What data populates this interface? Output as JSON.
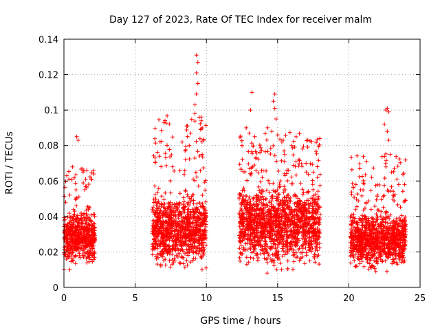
{
  "chart_data": {
    "type": "scatter",
    "title": "Day 127 of 2023, Rate Of TEC Index for receiver malm",
    "xlabel": "GPS time / hours",
    "ylabel": "ROTI / TECUs",
    "xlim": [
      0,
      25
    ],
    "ylim": [
      0,
      0.14
    ],
    "xticks": [
      0,
      5,
      10,
      15,
      20,
      25
    ],
    "yticks": [
      0,
      0.02,
      0.04,
      0.06,
      0.08,
      0.1,
      0.12,
      0.14
    ],
    "xtick_labels": [
      "0",
      "5",
      "10",
      "15",
      "20",
      "25"
    ],
    "ytick_labels": [
      "0",
      "0.02",
      "0.04",
      "0.06",
      "0.08",
      "0.1",
      "0.12",
      "0.14"
    ],
    "grid": true,
    "legend": "none",
    "marker": "plus",
    "color": "#ff0000",
    "segments": [
      {
        "x_start": 0.0,
        "x_end": 2.2,
        "typical": [
          0.008,
          0.045
        ],
        "max": 0.085
      },
      {
        "x_start": 6.2,
        "x_end": 10.0,
        "typical": [
          0.006,
          0.055
        ],
        "max": 0.131
      },
      {
        "x_start": 12.3,
        "x_end": 18.0,
        "typical": [
          0.006,
          0.06
        ],
        "max": 0.11
      },
      {
        "x_start": 20.1,
        "x_end": 24.0,
        "typical": [
          0.006,
          0.045
        ],
        "max": 0.101
      }
    ],
    "points": [
      [
        0.9,
        0.085
      ],
      [
        1.0,
        0.083
      ],
      [
        0.2,
        0.063
      ],
      [
        0.6,
        0.068
      ],
      [
        1.4,
        0.066
      ],
      [
        1.6,
        0.066
      ],
      [
        2.1,
        0.064
      ],
      [
        6.4,
        0.073
      ],
      [
        6.7,
        0.074
      ],
      [
        8.5,
        0.077
      ],
      [
        8.8,
        0.08
      ],
      [
        9.2,
        0.098
      ],
      [
        9.2,
        0.103
      ],
      [
        9.3,
        0.131
      ],
      [
        9.4,
        0.127
      ],
      [
        9.3,
        0.121
      ],
      [
        9.4,
        0.115
      ],
      [
        9.3,
        0.109
      ],
      [
        9.5,
        0.096
      ],
      [
        9.6,
        0.089
      ],
      [
        9.8,
        0.083
      ],
      [
        9.7,
        0.075
      ],
      [
        8.9,
        0.087
      ],
      [
        8.3,
        0.082
      ],
      [
        12.5,
        0.08
      ],
      [
        12.8,
        0.09
      ],
      [
        13.0,
        0.087
      ],
      [
        13.2,
        0.11
      ],
      [
        13.1,
        0.1
      ],
      [
        13.4,
        0.085
      ],
      [
        14.3,
        0.09
      ],
      [
        14.7,
        0.105
      ],
      [
        14.8,
        0.109
      ],
      [
        14.8,
        0.101
      ],
      [
        14.9,
        0.095
      ],
      [
        14.6,
        0.088
      ],
      [
        15.0,
        0.086
      ],
      [
        15.3,
        0.082
      ],
      [
        16.0,
        0.08
      ],
      [
        16.5,
        0.072
      ],
      [
        17.0,
        0.07
      ],
      [
        17.5,
        0.065
      ],
      [
        17.8,
        0.062
      ],
      [
        20.5,
        0.058
      ],
      [
        21.0,
        0.055
      ],
      [
        22.0,
        0.052
      ],
      [
        22.5,
        0.092
      ],
      [
        22.6,
        0.1
      ],
      [
        22.7,
        0.101
      ],
      [
        22.8,
        0.099
      ],
      [
        22.7,
        0.088
      ],
      [
        22.8,
        0.083
      ],
      [
        22.9,
        0.075
      ],
      [
        22.6,
        0.068
      ],
      [
        23.0,
        0.065
      ],
      [
        23.5,
        0.058
      ]
    ]
  }
}
